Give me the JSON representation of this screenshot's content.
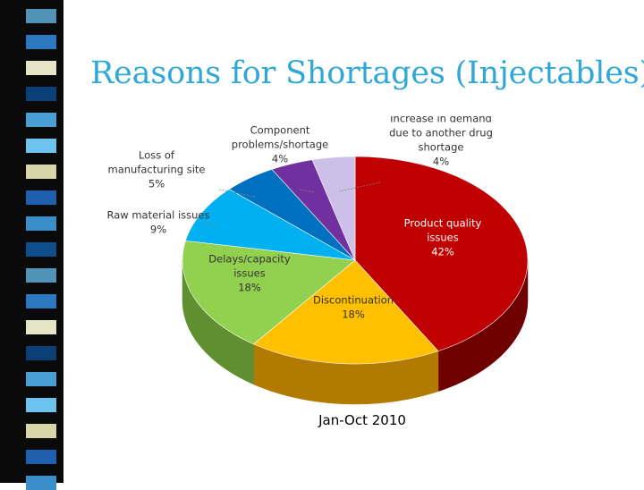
{
  "slide": {
    "title": "Reasons for Shortages (Injectables)"
  },
  "decor": {
    "stripe_colors": [
      "#4f93b8",
      "#2a79c0",
      "#e7e5c8",
      "#0b3f78",
      "#4a9ed6",
      "#6cc3f0",
      "#d8d6a8",
      "#1f5fb0",
      "#3a8ec9",
      "#0e4e8c"
    ]
  },
  "chart_data": {
    "type": "pie",
    "caption": "Jan-Oct 2010",
    "slices": [
      {
        "label": [
          "Product quality",
          "issues"
        ],
        "value": 42,
        "pct_text": "42%",
        "color": "#c00000",
        "dark": "#6e0000"
      },
      {
        "label": [
          "Discontinuation"
        ],
        "value": 18,
        "pct_text": "18%",
        "color": "#ffc000",
        "dark": "#b37a00"
      },
      {
        "label": [
          "Delays/capacity",
          "issues"
        ],
        "value": 18,
        "pct_text": "18%",
        "color": "#92d050",
        "dark": "#5f8f30"
      },
      {
        "label": [
          "Raw material issues"
        ],
        "value": 9,
        "pct_text": "9%",
        "color": "#00b0f0",
        "dark": "#0072a0"
      },
      {
        "label": [
          "Loss of",
          "manufacturing site"
        ],
        "value": 5,
        "pct_text": "5%",
        "color": "#0070c0",
        "dark": "#003f70"
      },
      {
        "label": [
          "Component",
          "problems/shortage"
        ],
        "value": 4,
        "pct_text": "4%",
        "color": "#7030a0",
        "dark": "#401860"
      },
      {
        "label": [
          "Increase in demand",
          "due to another drug",
          "shortage"
        ],
        "value": 4,
        "pct_text": "4%",
        "color": "#ccc0e8",
        "dark": "#8a80aa"
      }
    ]
  }
}
